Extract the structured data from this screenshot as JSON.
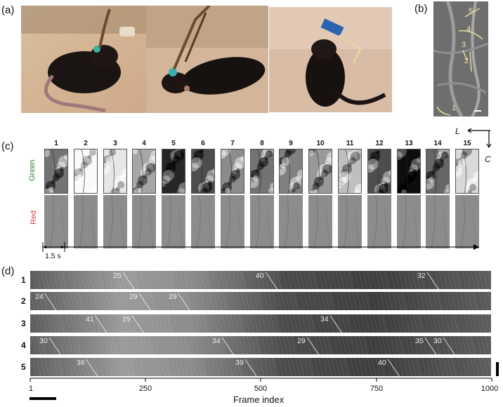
{
  "panels": {
    "a": "(a)",
    "b": "(b)",
    "c": "(c)",
    "d": "(d)"
  },
  "panel_b": {
    "vessel_labels": [
      "5",
      "4",
      "3",
      "2",
      "1"
    ]
  },
  "panel_c": {
    "frames": [
      "1",
      "2",
      "3",
      "4",
      "5",
      "6",
      "7",
      "8",
      "9",
      "10",
      "11",
      "12",
      "13",
      "14",
      "15"
    ],
    "green_levels": [
      0.55,
      0.02,
      0.1,
      0.35,
      0.85,
      0.7,
      0.45,
      0.55,
      0.5,
      0.4,
      0.25,
      0.7,
      0.95,
      0.6,
      0.15
    ],
    "channel_green": "Green",
    "channel_red": "Red",
    "time_scale": "1.5 s",
    "compass_L": "L",
    "compass_C": "C"
  },
  "panel_d": {
    "rows": [
      {
        "label": "1",
        "velocities": [
          {
            "text": "25",
            "pos": 0.18
          },
          {
            "text": "40",
            "pos": 0.49
          },
          {
            "text": "32",
            "pos": 0.84
          }
        ]
      },
      {
        "label": "2",
        "velocities": [
          {
            "text": "24",
            "pos": 0.01
          },
          {
            "text": "29",
            "pos": 0.215
          },
          {
            "text": "29",
            "pos": 0.3
          }
        ]
      },
      {
        "label": "3",
        "velocities": [
          {
            "text": "41",
            "pos": 0.12
          },
          {
            "text": "29",
            "pos": 0.2
          },
          {
            "text": "34",
            "pos": 0.63
          }
        ]
      },
      {
        "label": "4",
        "velocities": [
          {
            "text": "30",
            "pos": 0.02
          },
          {
            "text": "34",
            "pos": 0.395
          },
          {
            "text": "29",
            "pos": 0.58
          },
          {
            "text": "35",
            "pos": 0.835
          },
          {
            "text": "30",
            "pos": 0.875
          }
        ]
      },
      {
        "label": "5",
        "velocities": [
          {
            "text": "36",
            "pos": 0.1
          },
          {
            "text": "39",
            "pos": 0.445
          },
          {
            "text": "40",
            "pos": 0.755
          }
        ]
      }
    ],
    "x_axis": {
      "label": "Frame index",
      "ticks": [
        {
          "text": "1",
          "value": 1
        },
        {
          "text": "250",
          "value": 250
        },
        {
          "text": "500",
          "value": 500
        },
        {
          "text": "750",
          "value": 750
        },
        {
          "text": "1000",
          "value": 1000
        }
      ],
      "range": [
        1,
        1000
      ]
    }
  },
  "colors": {
    "green_label": "#2e7d32",
    "red_label": "#d04040",
    "vessel_line": "#e8dc9a"
  }
}
